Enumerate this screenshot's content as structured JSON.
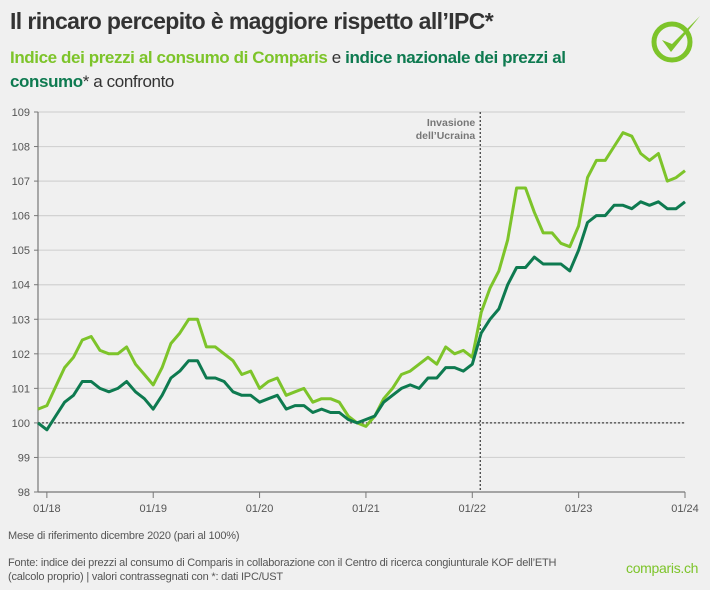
{
  "header": {
    "title": "Il rincaro percepito è maggiore rispetto all’IPC*",
    "subtitle_part1": "Indice dei prezzi al consumo di Comparis",
    "subtitle_part2": " e ",
    "subtitle_part3": "indice nazionale dei prezzi al consumo",
    "subtitle_part4": "* a confronto",
    "logo_icon": "check-circle-icon"
  },
  "colors": {
    "comparis": "#7dc42a",
    "cpi": "#0e7a50",
    "grid": "#d2d2d2",
    "axis": "#777777"
  },
  "chart_data": {
    "type": "line",
    "title": "Il rincaro percepito è maggiore rispetto all’IPC*",
    "xlabel": "",
    "ylabel": "",
    "ylim": [
      98,
      109
    ],
    "yticks": [
      98,
      99,
      100,
      101,
      102,
      103,
      104,
      105,
      106,
      107,
      108,
      109
    ],
    "xticks": [
      "01/18",
      "01/19",
      "01/20",
      "01/21",
      "01/22",
      "01/23",
      "01/24"
    ],
    "x_start": "12/17",
    "x_end": "01/24",
    "grid": true,
    "reference_line": 100,
    "annotation": {
      "label_line1": "Invasione",
      "label_line2": "dell’Ucraina",
      "x": "02/22"
    },
    "series": [
      {
        "name": "Indice dei prezzi al consumo di Comparis",
        "color": "#7dc42a",
        "values": [
          100.4,
          100.5,
          101.05,
          101.6,
          101.9,
          102.4,
          102.5,
          102.1,
          102.0,
          102.0,
          102.2,
          101.7,
          101.4,
          101.1,
          101.6,
          102.3,
          102.6,
          103.0,
          103.0,
          102.2,
          102.2,
          102.0,
          101.8,
          101.4,
          101.5,
          101.0,
          101.2,
          101.3,
          100.8,
          100.9,
          101.0,
          100.6,
          100.7,
          100.7,
          100.6,
          100.2,
          100.0,
          99.9,
          100.2,
          100.7,
          101.0,
          101.4,
          101.5,
          101.7,
          101.9,
          101.7,
          102.2,
          102.0,
          102.1,
          101.9,
          103.2,
          103.9,
          104.4,
          105.3,
          106.8,
          106.8,
          106.1,
          105.5,
          105.5,
          105.2,
          105.1,
          105.7,
          107.1,
          107.6,
          107.6,
          108.0,
          108.4,
          108.3,
          107.8,
          107.6,
          107.8,
          107.0,
          107.1,
          107.3
        ]
      },
      {
        "name": "indice nazionale dei prezzi al consumo",
        "color": "#0e7a50",
        "values": [
          100.0,
          99.8,
          100.2,
          100.6,
          100.8,
          101.2,
          101.2,
          101.0,
          100.9,
          101.0,
          101.2,
          100.9,
          100.7,
          100.4,
          100.8,
          101.3,
          101.5,
          101.8,
          101.8,
          101.3,
          101.3,
          101.2,
          100.9,
          100.8,
          100.8,
          100.6,
          100.7,
          100.8,
          100.4,
          100.5,
          100.5,
          100.3,
          100.4,
          100.3,
          100.3,
          100.1,
          100.0,
          100.1,
          100.2,
          100.6,
          100.8,
          101.0,
          101.1,
          101.0,
          101.3,
          101.3,
          101.6,
          101.6,
          101.5,
          101.7,
          102.6,
          103.0,
          103.3,
          104.0,
          104.5,
          104.5,
          104.8,
          104.6,
          104.6,
          104.6,
          104.4,
          105.0,
          105.8,
          106.0,
          106.0,
          106.3,
          106.3,
          106.2,
          106.4,
          106.3,
          106.4,
          106.2,
          106.2,
          106.4
        ]
      }
    ]
  },
  "footer": {
    "note": "Mese di riferimento dicembre 2020 (pari al 100%)",
    "source": "Fonte: indice dei prezzi al consumo di Comparis in collaborazione con il Centro di ricerca congiunturale KOF dell’ETH (calcolo proprio) | valori contrassegnati con *: dati IPC/UST",
    "brand": "comparis.ch"
  }
}
